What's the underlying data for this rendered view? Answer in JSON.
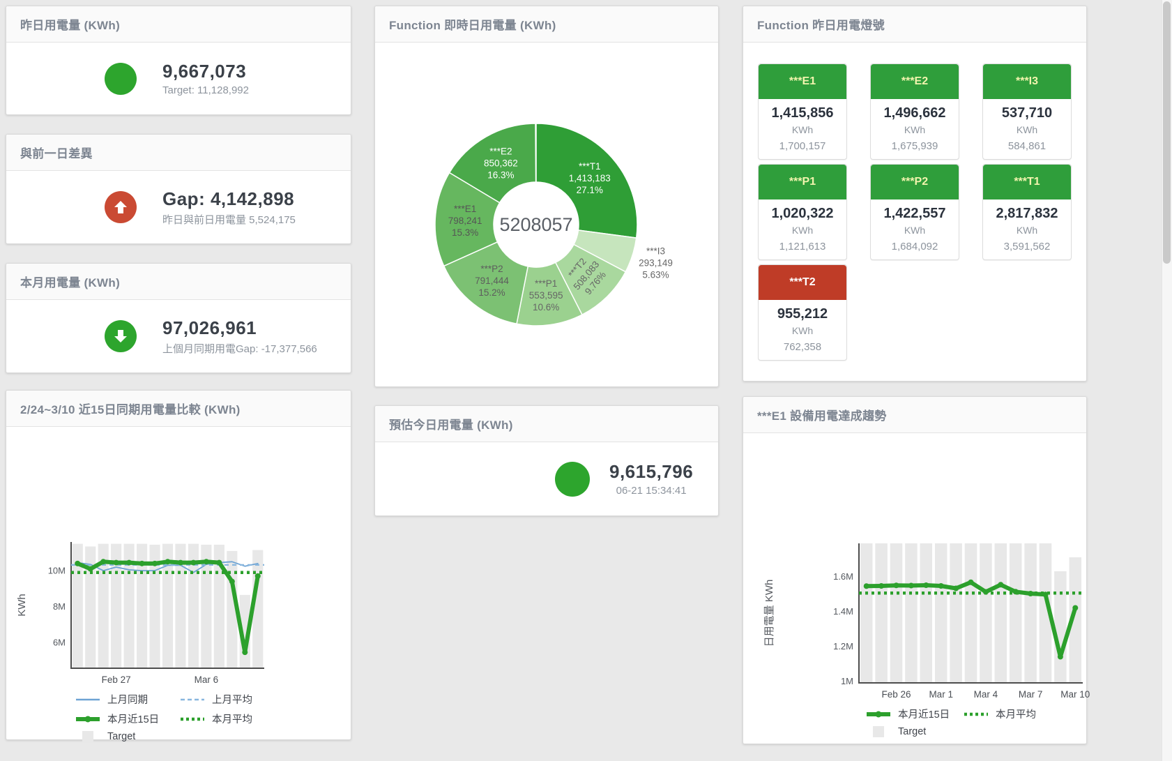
{
  "colors": {
    "green_circle": "#2da52d",
    "red_circle": "#ca4a33",
    "green_header": "#2f9e3b",
    "red_header": "#bf3c27",
    "light_label_green": "#f2f4ae",
    "light_label_red": "#ffffff",
    "bar": "#e8e8e8",
    "blue": "#6da3d4",
    "blue_light": "#88b6de",
    "trend_green": "#2ca02c"
  },
  "panels": {
    "yesterday": {
      "title": "昨日用電量 (KWh)",
      "value": "9,667,073",
      "subtext": "Target: 11,128,992"
    },
    "diff": {
      "title": "與前一日差異",
      "value": "Gap: 4,142,898",
      "subtext": "昨日與前日用電量 5,524,175"
    },
    "month": {
      "title": "本月用電量 (KWh)",
      "value": "97,026,961",
      "subtext": "上個月同期用電Gap: -17,377,566"
    },
    "estimate": {
      "title": "預估今日用電量 (KWh)",
      "value": "9,615,796",
      "subtext": "06-21 15:34:41"
    },
    "compare": {
      "title": "2/24~3/10 近15日同期用電量比較 (KWh)"
    },
    "donut_panel": {
      "title": "Function 即時日用電量 (KWh)"
    },
    "trend": {
      "title": "***E1 設備用電達成趨勢"
    },
    "lights": {
      "title": "Function 昨日用電燈號",
      "cards": [
        {
          "label": "***E1",
          "value": "1,415,856",
          "unit": "KWh",
          "target": "1,700,157",
          "status": "green"
        },
        {
          "label": "***E2",
          "value": "1,496,662",
          "unit": "KWh",
          "target": "1,675,939",
          "status": "green"
        },
        {
          "label": "***I3",
          "value": "537,710",
          "unit": "KWh",
          "target": "584,861",
          "status": "green"
        },
        {
          "label": "***P1",
          "value": "1,020,322",
          "unit": "KWh",
          "target": "1,121,613",
          "status": "green"
        },
        {
          "label": "***P2",
          "value": "1,422,557",
          "unit": "KWh",
          "target": "1,684,092",
          "status": "green"
        },
        {
          "label": "***T1",
          "value": "2,817,832",
          "unit": "KWh",
          "target": "3,591,562",
          "status": "green"
        },
        {
          "label": "***T2",
          "value": "955,212",
          "unit": "KWh",
          "target": "762,358",
          "status": "red"
        }
      ]
    }
  },
  "chart_data": [
    {
      "id": "function-daily-donut",
      "type": "pie",
      "title": "Function 即時日用電量 (KWh)",
      "center_total": "5208057",
      "legend_position": "none",
      "slices": [
        {
          "label": "***T1",
          "value": 1413183,
          "display": "1,413,183",
          "pct": "27.1%",
          "share": 27.1,
          "color": "#2f9e36",
          "text_color": "#ffffff"
        },
        {
          "label": "***I3",
          "value": 293149,
          "display": "293,149",
          "pct": "5.63%",
          "share": 5.63,
          "color": "#c6e5bd",
          "text_color": "#666666",
          "label_outside": true
        },
        {
          "label": "***T2",
          "value": 508083,
          "display": "508,083",
          "pct": "9.76%",
          "share": 9.76,
          "color": "#a9d89e",
          "text_color": "#666666",
          "label_rotate": -50
        },
        {
          "label": "***P1",
          "value": 553595,
          "display": "553,595",
          "pct": "10.6%",
          "share": 10.6,
          "color": "#9bd18f",
          "text_color": "#666666"
        },
        {
          "label": "***P2",
          "value": 791444,
          "display": "791,444",
          "pct": "15.2%",
          "share": 15.2,
          "color": "#7cc173",
          "text_color": "#5d5d5d"
        },
        {
          "label": "***E1",
          "value": 798241,
          "display": "798,241",
          "pct": "15.3%",
          "share": 15.3,
          "color": "#66b75f",
          "text_color": "#555555"
        },
        {
          "label": "***E2",
          "value": 850362,
          "display": "850,362",
          "pct": "16.3%",
          "share": 16.3,
          "color": "#4aa94a",
          "text_color": "#ffffff"
        }
      ]
    },
    {
      "id": "compare-15d",
      "type": "line",
      "title": "2/24~3/10 近15日同期用電量比較 (KWh)",
      "ylabel": "KWh",
      "ylim": [
        4.56,
        11.6
      ],
      "yticks": [
        {
          "v": 6,
          "label": "6M"
        },
        {
          "v": 8,
          "label": "8M"
        },
        {
          "v": 10,
          "label": "10M"
        }
      ],
      "n": 15,
      "xticks": [
        {
          "i": 3,
          "label": "Feb 27"
        },
        {
          "i": 10,
          "label": "Mar 6"
        }
      ],
      "grid": false,
      "legend_position": "bottom",
      "bars": {
        "name": "Target",
        "color": "#e8e8e8",
        "values": [
          11.5,
          11.35,
          11.5,
          11.5,
          11.5,
          11.5,
          11.45,
          11.5,
          11.5,
          11.5,
          11.45,
          11.45,
          11.1,
          8.65,
          11.15
        ]
      },
      "series": [
        {
          "name": "上月同期",
          "color": "#6da3d4",
          "style": "solid",
          "width": 1.8,
          "values": [
            10.45,
            10.35,
            10.0,
            10.2,
            10.05,
            10.0,
            10.0,
            10.3,
            10.3,
            9.9,
            10.35,
            10.45,
            10.5,
            10.25,
            10.4
          ]
        },
        {
          "name": "上月平均",
          "color": "#88b6de",
          "style": "dashed",
          "width": 2.2,
          "constant": 10.32
        },
        {
          "name": "本月近15日",
          "color": "#2ca02c",
          "style": "solid",
          "width": 6,
          "markers": true,
          "values": [
            10.4,
            10.1,
            10.5,
            10.45,
            10.45,
            10.4,
            10.4,
            10.5,
            10.45,
            10.45,
            10.5,
            10.45,
            9.4,
            5.45,
            9.7
          ]
        },
        {
          "name": "本月平均",
          "color": "#2ca02c",
          "style": "dotted",
          "width": 4.5,
          "constant": 9.9
        }
      ],
      "legend": [
        {
          "label": "上月同期",
          "swatch": "line",
          "color": "#6da3d4"
        },
        {
          "label": "上月平均",
          "swatch": "dashed",
          "color": "#88b6de"
        },
        {
          "label": "本月近15日",
          "swatch": "thick",
          "color": "#2ca02c"
        },
        {
          "label": "本月平均",
          "swatch": "dotted",
          "color": "#2ca02c"
        },
        {
          "label": "Target",
          "swatch": "box",
          "color": "#e8e8e8"
        }
      ]
    },
    {
      "id": "e1-trend",
      "type": "line",
      "title": "***E1 設備用電達成趨勢",
      "ylabel": "日用電量 KWh",
      "ylim": [
        0.99,
        1.79
      ],
      "yticks": [
        {
          "v": 1,
          "label": "1M"
        },
        {
          "v": 1.2,
          "label": "1.2M"
        },
        {
          "v": 1.4,
          "label": "1.4M"
        },
        {
          "v": 1.6,
          "label": "1.6M"
        }
      ],
      "n": 15,
      "xticks": [
        {
          "i": 2,
          "label": "Feb 26"
        },
        {
          "i": 5,
          "label": "Mar 1"
        },
        {
          "i": 8,
          "label": "Mar 4"
        },
        {
          "i": 11,
          "label": "Mar 7"
        },
        {
          "i": 14,
          "label": "Mar 10"
        }
      ],
      "grid": false,
      "legend_position": "bottom",
      "bars": {
        "name": "Target",
        "color": "#e8e8e8",
        "values": [
          1.79,
          1.79,
          1.79,
          1.79,
          1.79,
          1.79,
          1.79,
          1.79,
          1.79,
          1.79,
          1.79,
          1.79,
          1.79,
          1.63,
          1.71
        ]
      },
      "series": [
        {
          "name": "本月近15日",
          "color": "#2ca02c",
          "style": "solid",
          "width": 6,
          "markers": true,
          "values": [
            1.545,
            1.546,
            1.549,
            1.548,
            1.55,
            1.546,
            1.532,
            1.567,
            1.512,
            1.553,
            1.513,
            1.502,
            1.497,
            1.14,
            1.42
          ]
        },
        {
          "name": "本月平均",
          "color": "#2ca02c",
          "style": "dotted",
          "width": 4.5,
          "constant": 1.505
        }
      ],
      "legend": [
        {
          "label": "本月近15日",
          "swatch": "thick",
          "color": "#2ca02c"
        },
        {
          "label": "本月平均",
          "swatch": "dotted",
          "color": "#2ca02c"
        },
        {
          "label": "Target",
          "swatch": "box",
          "color": "#e8e8e8"
        }
      ]
    }
  ]
}
